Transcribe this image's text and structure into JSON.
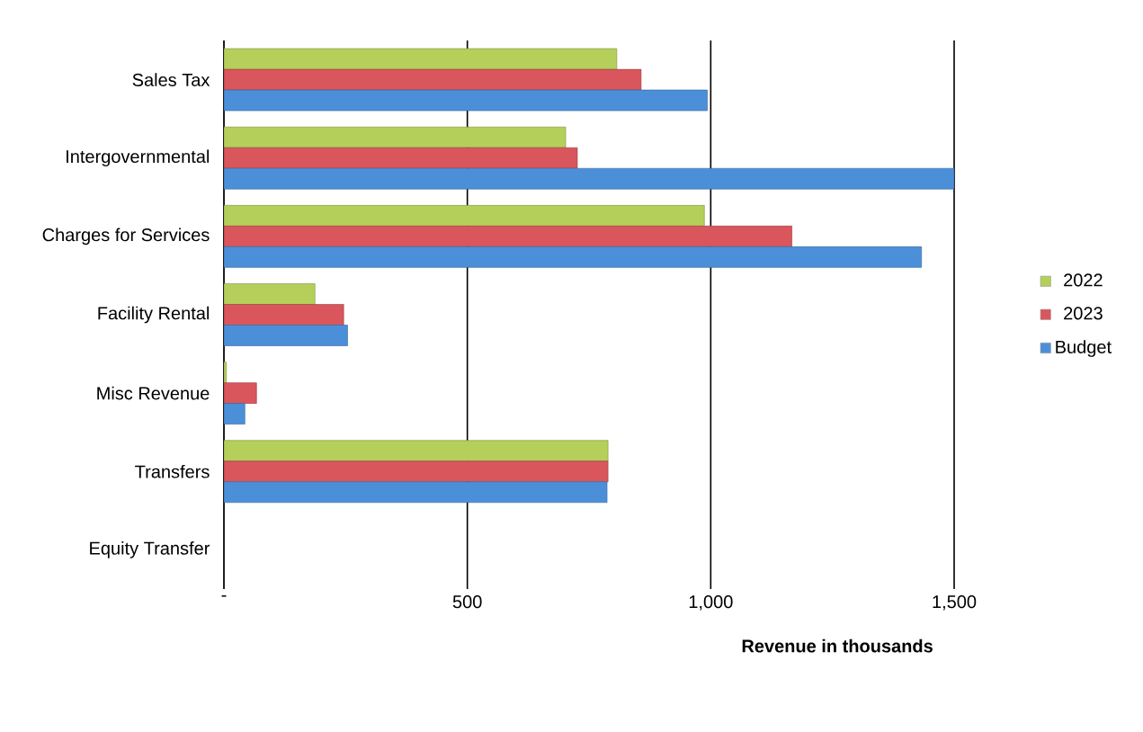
{
  "chart_data": {
    "type": "bar",
    "orientation": "horizontal",
    "xlabel": "Revenue in thousands",
    "categories": [
      "Sales Tax",
      "Intergovernmental",
      "Charges for Services",
      "Facility Rental",
      "Misc Revenue",
      "Transfers",
      "Equity Transfer"
    ],
    "series": [
      {
        "name": "2022",
        "color": "#b5cf5b",
        "values": [
          807,
          702,
          987,
          187,
          5,
          789,
          null
        ]
      },
      {
        "name": "2023",
        "color": "#d9565c",
        "values": [
          857,
          726,
          1167,
          246,
          67,
          789,
          null
        ]
      },
      {
        "name": "Budget",
        "color": "#4c8fd9",
        "values": [
          993,
          1500,
          1433,
          254,
          43,
          787,
          null
        ]
      }
    ],
    "xlim": [
      0,
      1500
    ],
    "xticks": [
      {
        "value": 0,
        "label": "-"
      },
      500,
      {
        "value": 1000,
        "label": "1,000"
      },
      {
        "value": 1500,
        "label": "1,500"
      }
    ],
    "grid": "x",
    "legend": "right"
  }
}
